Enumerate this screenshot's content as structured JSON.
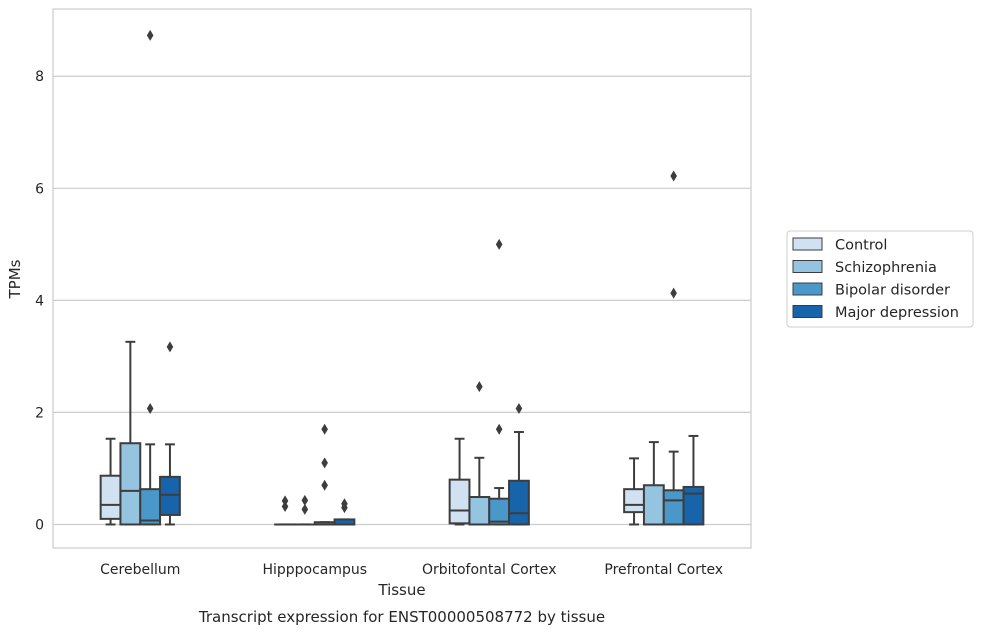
{
  "chart_data": {
    "type": "box",
    "title": "",
    "caption": "Transcript expression for ENST00000508772 by tissue",
    "xlabel": "Tissue",
    "ylabel": "TPMs",
    "ylim": [
      -0.42,
      9.2
    ],
    "yticks": [
      0,
      2,
      4,
      6,
      8
    ],
    "grid": "horizontal",
    "legend_position": "right",
    "categories": [
      "Cerebellum",
      "Hipppocampus",
      "Orbitofontal Cortex",
      "Prefrontal Cortex"
    ],
    "series": [
      {
        "name": "Control",
        "color": "#d0e1f2",
        "boxes": [
          {
            "min": 0.0,
            "q1": 0.1,
            "median": 0.35,
            "q3": 0.87,
            "max": 1.53,
            "outliers": []
          },
          {
            "min": 0.0,
            "q1": 0.0,
            "median": 0.0,
            "q3": 0.0,
            "max": 0.0,
            "outliers": [
              0.32,
              0.42
            ]
          },
          {
            "min": 0.0,
            "q1": 0.02,
            "median": 0.25,
            "q3": 0.8,
            "max": 1.53,
            "outliers": []
          },
          {
            "min": 0.0,
            "q1": 0.22,
            "median": 0.35,
            "q3": 0.63,
            "max": 1.18,
            "outliers": []
          }
        ]
      },
      {
        "name": "Schizophrenia",
        "color": "#94c4df",
        "boxes": [
          {
            "min": 0.0,
            "q1": 0.0,
            "median": 0.6,
            "q3": 1.45,
            "max": 3.26,
            "outliers": []
          },
          {
            "min": 0.0,
            "q1": 0.0,
            "median": 0.0,
            "q3": 0.0,
            "max": 0.0,
            "outliers": [
              0.27,
              0.43
            ]
          },
          {
            "min": 0.0,
            "q1": 0.0,
            "median": 0.0,
            "q3": 0.49,
            "max": 1.19,
            "outliers": [
              2.46
            ]
          },
          {
            "min": 0.0,
            "q1": 0.0,
            "median": 0.0,
            "q3": 0.7,
            "max": 1.47,
            "outliers": []
          }
        ]
      },
      {
        "name": "Bipolar disorder",
        "color": "#4a98c9",
        "boxes": [
          {
            "min": 0.0,
            "q1": 0.0,
            "median": 0.07,
            "q3": 0.63,
            "max": 1.43,
            "outliers": [
              2.07,
              8.73
            ]
          },
          {
            "min": 0.0,
            "q1": 0.0,
            "median": 0.0,
            "q3": 0.04,
            "max": 0.04,
            "outliers": [
              0.7,
              1.1,
              1.7
            ]
          },
          {
            "min": 0.0,
            "q1": 0.0,
            "median": 0.05,
            "q3": 0.46,
            "max": 0.65,
            "outliers": [
              1.7,
              5.0
            ]
          },
          {
            "min": 0.0,
            "q1": 0.0,
            "median": 0.43,
            "q3": 0.61,
            "max": 1.3,
            "outliers": [
              4.13,
              6.22
            ]
          }
        ]
      },
      {
        "name": "Major depression",
        "color": "#1764ab",
        "boxes": [
          {
            "min": 0.0,
            "q1": 0.17,
            "median": 0.53,
            "q3": 0.85,
            "max": 1.43,
            "outliers": [
              3.17
            ]
          },
          {
            "min": 0.0,
            "q1": 0.0,
            "median": 0.0,
            "q3": 0.09,
            "max": 0.09,
            "outliers": [
              0.3,
              0.37
            ]
          },
          {
            "min": 0.0,
            "q1": 0.0,
            "median": 0.2,
            "q3": 0.78,
            "max": 1.65,
            "outliers": [
              2.07
            ]
          },
          {
            "min": 0.0,
            "q1": 0.0,
            "median": 0.55,
            "q3": 0.67,
            "max": 1.58,
            "outliers": []
          }
        ]
      }
    ]
  }
}
